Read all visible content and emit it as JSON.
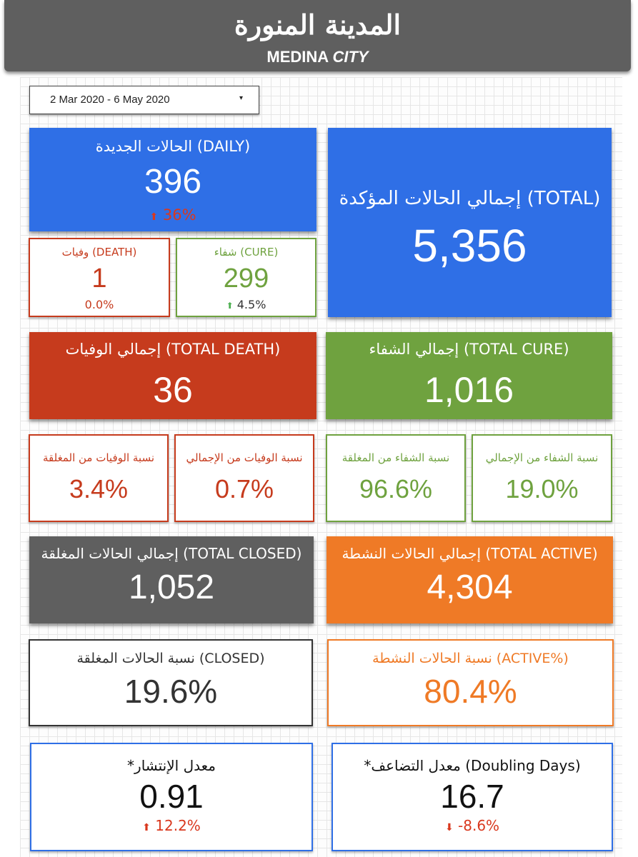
{
  "header": {
    "title_ar": "المدينة المنورة",
    "title_en_1": "MEDINA",
    "title_en_2": "CITY"
  },
  "date_range": {
    "value": "2 Mar 2020 - 6 May 2020",
    "caret": "▾"
  },
  "new_cases": {
    "title": "الحالات الجديدة (DAILY)",
    "value": "396",
    "change": "36%",
    "arrow": "⬆",
    "color": "#2f6fe6"
  },
  "total_confirmed": {
    "title": "إجمالي الحالات المؤكدة (TOTAL)",
    "value": "5,356"
  },
  "daily_cure": {
    "title": "شفاء (CURE)",
    "value": "299",
    "change": "4.5%",
    "arrow": "⬆"
  },
  "daily_death": {
    "title": "وفيات (DEATH)",
    "value": "1",
    "change": "0.0%"
  },
  "total_death": {
    "title": "إجمالي الوفيات (TOTAL DEATH)",
    "value": "36",
    "color": "#c63b1d"
  },
  "total_cure": {
    "title": "إجمالي الشفاء (TOTAL CURE)",
    "value": "1,016",
    "color": "#6fa23f"
  },
  "death_closed_ratio": {
    "title": "نسبة الوفيات من المغلقة",
    "value": "3.4%"
  },
  "death_total_ratio": {
    "title": "نسبة الوفيات من الإجمالي",
    "value": "0.7%"
  },
  "cure_closed_ratio": {
    "title": "نسبة الشفاء من المغلقة",
    "value": "96.6%"
  },
  "cure_total_ratio": {
    "title": "نسبة الشفاء من الإجمالي",
    "value": "19.0%"
  },
  "total_closed": {
    "title": "إجمالي الحالات المغلقة (TOTAL CLOSED)",
    "value": "1,052",
    "color": "#5f5f5f"
  },
  "total_active": {
    "title": "إجمالي الحالات النشطة (TOTAL ACTIVE)",
    "value": "4,304",
    "color": "#ef7a26"
  },
  "closed_ratio": {
    "title": "نسبة الحالات المغلقة (CLOSED)",
    "value": "19.6%"
  },
  "active_ratio": {
    "title": "نسبة الحالات النشطة (ACTIVE%)",
    "value": "80.4%"
  },
  "spread_rate": {
    "title": "*معدل الإنتشار",
    "value": "0.91",
    "change": "12.2%",
    "arrow": "⬆"
  },
  "doubling_days": {
    "title": "*معدل التضاعف (Doubling Days)",
    "value": "16.7",
    "change": "-8.6%",
    "arrow": "⬇"
  },
  "colors": {
    "up_red": "#d9381e",
    "up_green": "#4caf50",
    "outline_red": "#c63b1d",
    "outline_green": "#6fa23f",
    "outline_orange": "#ef7a26",
    "outline_blue": "#2f6fe6",
    "outline_dark": "#333333"
  }
}
